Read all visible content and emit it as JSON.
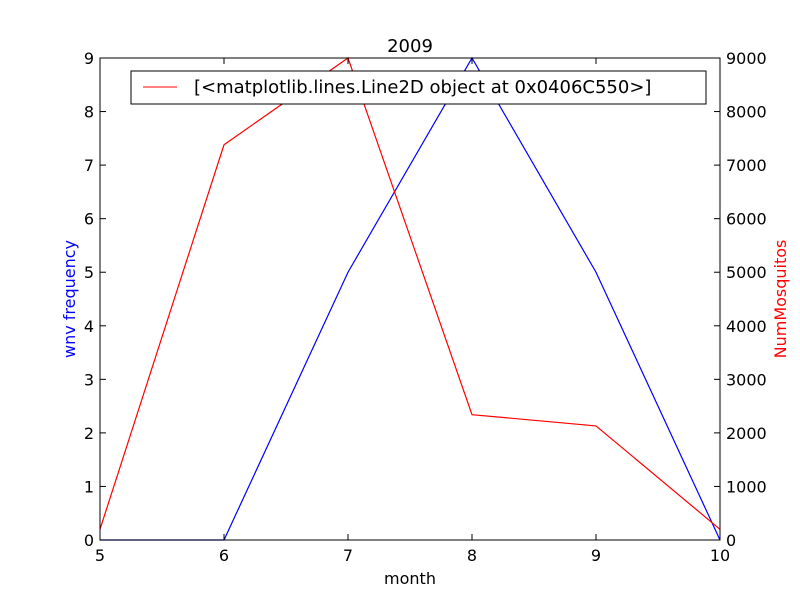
{
  "chart_data": {
    "type": "line",
    "title": "2009",
    "xlabel": "month",
    "x": [
      5,
      6,
      7,
      8,
      9,
      10
    ],
    "xlim": [
      5,
      10
    ],
    "xticks": [
      "5",
      "6",
      "7",
      "8",
      "9",
      "10"
    ],
    "grid": false,
    "series": [
      {
        "axis": "left",
        "color": "#0000ff",
        "values": [
          0,
          0,
          5,
          9,
          5,
          0
        ]
      },
      {
        "axis": "right",
        "color": "#ff0000",
        "values": [
          200,
          7380,
          9000,
          2340,
          2130,
          200
        ]
      }
    ],
    "y_left": {
      "label": "wnv frequency",
      "color": "#0000ff",
      "ylim": [
        0,
        9
      ],
      "ticks": [
        "0",
        "1",
        "2",
        "3",
        "4",
        "5",
        "6",
        "7",
        "8",
        "9"
      ]
    },
    "y_right": {
      "label": "NumMosquitos",
      "color": "#ff0000",
      "ylim": [
        0,
        9000
      ],
      "ticks": [
        "0",
        "1000",
        "2000",
        "3000",
        "4000",
        "5000",
        "6000",
        "7000",
        "8000",
        "9000"
      ]
    },
    "legend": {
      "placement": "top-right",
      "entries": [
        {
          "label": "[<matplotlib.lines.Line2D object at 0x0406C550>]",
          "color": "#ff0000"
        }
      ]
    }
  }
}
